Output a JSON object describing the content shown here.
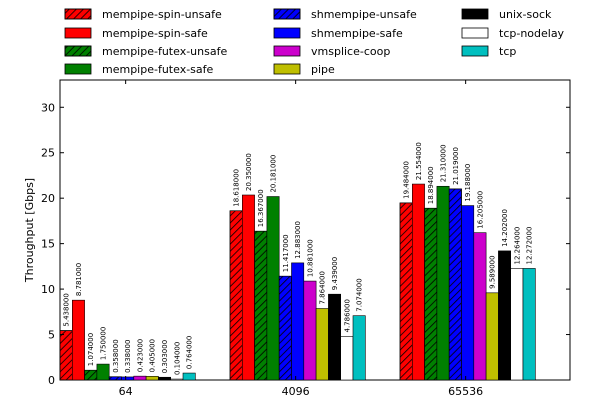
{
  "chart_data": {
    "type": "bar",
    "title": "",
    "xlabel": "",
    "ylabel": "Throughput [Gbps]",
    "ylim": [
      0,
      33
    ],
    "yticks": [
      0,
      5,
      10,
      15,
      20,
      25,
      30
    ],
    "grid": false,
    "legend_position": "top",
    "categories": [
      "64",
      "4096",
      "65536"
    ],
    "series": [
      {
        "name": "mempipe-spin-unsafe",
        "color": "#ff0000",
        "hatch": true,
        "values": [
          5.438,
          18.618,
          19.484
        ],
        "labels": [
          "5.438000",
          "18.618000",
          "19.484000"
        ]
      },
      {
        "name": "mempipe-spin-safe",
        "color": "#ff0000",
        "hatch": false,
        "values": [
          8.781,
          20.35,
          21.554
        ],
        "labels": [
          "8.781000",
          "20.350000",
          "21.554000"
        ]
      },
      {
        "name": "mempipe-futex-unsafe",
        "color": "#008000",
        "hatch": true,
        "values": [
          1.074,
          16.367,
          18.894
        ],
        "labels": [
          "1.074000",
          "16.367000",
          "18.894000"
        ]
      },
      {
        "name": "mempipe-futex-safe",
        "color": "#008000",
        "hatch": false,
        "values": [
          1.75,
          20.181,
          21.31
        ],
        "labels": [
          "1.750000",
          "20.181000",
          "21.310000"
        ]
      },
      {
        "name": "shmempipe-unsafe",
        "color": "#0000ff",
        "hatch": true,
        "values": [
          0.358,
          11.417,
          21.019
        ],
        "labels": [
          "0.358000",
          "11.417000",
          "21.019000"
        ]
      },
      {
        "name": "shmempipe-safe",
        "color": "#0000ff",
        "hatch": false,
        "values": [
          0.338,
          12.883,
          19.188
        ],
        "labels": [
          "0.338000",
          "12.883000",
          "19.188000"
        ]
      },
      {
        "name": "vmsplice-coop",
        "color": "#cc00cc",
        "hatch": false,
        "values": [
          0.423,
          10.881,
          16.205
        ],
        "labels": [
          "0.423000",
          "10.881000",
          "16.205000"
        ]
      },
      {
        "name": "pipe",
        "color": "#bfbf00",
        "hatch": false,
        "values": [
          0.405,
          7.864,
          9.589
        ],
        "labels": [
          "0.405000",
          "7.864000",
          "9.589000"
        ]
      },
      {
        "name": "unix-sock",
        "color": "#000000",
        "hatch": false,
        "values": [
          0.303,
          9.439,
          14.202
        ],
        "labels": [
          "0.303000",
          "9.439000",
          "14.202000"
        ]
      },
      {
        "name": "tcp-nodelay",
        "color": "#ffffff",
        "hatch": false,
        "values": [
          0.104,
          4.786,
          12.264
        ],
        "labels": [
          "0.104000",
          "4.786000",
          "12.264000"
        ]
      },
      {
        "name": "tcp",
        "color": "#00bfbf",
        "hatch": false,
        "values": [
          0.764,
          7.074,
          12.272
        ],
        "labels": [
          "0.764000",
          "7.074000",
          "12.272000"
        ]
      }
    ]
  }
}
